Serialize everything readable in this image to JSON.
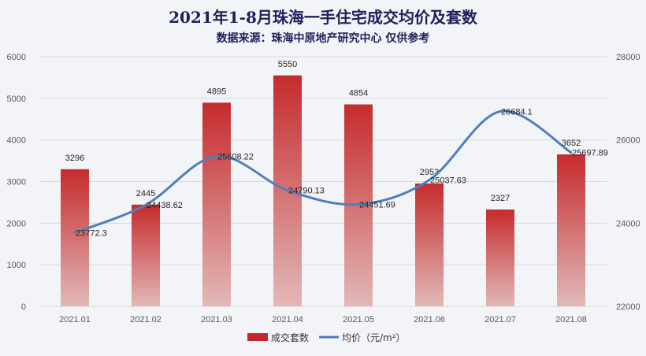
{
  "chart_data": {
    "type": "bar",
    "title": "2021年1-8月珠海一手住宅成交均价及套数",
    "subtitle": "数据来源：珠海中原地产研究中心 仅供参考",
    "categories": [
      "2021.01",
      "2021.02",
      "2021.03",
      "2021.04",
      "2021.05",
      "2021.06",
      "2021.07",
      "2021.08"
    ],
    "series": [
      {
        "name": "成交套数",
        "type": "bar",
        "axis": "left",
        "color": "#c1282a",
        "values": [
          3296,
          2445,
          4895,
          5550,
          4854,
          2953,
          2327,
          3652
        ]
      },
      {
        "name": "均价（元/m²）",
        "type": "line",
        "axis": "right",
        "color": "#4f7fb9",
        "values": [
          23772.3,
          24438.62,
          25608.22,
          24790.13,
          24451.69,
          25037.63,
          26684.1,
          25697.89
        ],
        "labels": [
          "23772.3",
          "24438.62",
          "25608.22",
          "24790.13",
          "24451.69",
          "25037.63",
          "26684.1",
          "25697.89"
        ]
      }
    ],
    "y_left": {
      "min": 0,
      "max": 6000,
      "ticks": [
        0,
        1000,
        2000,
        3000,
        4000,
        5000,
        6000
      ]
    },
    "y_right": {
      "min": 22000,
      "max": 28000,
      "ticks": [
        22000,
        24000,
        26000,
        28000
      ]
    },
    "legend_position": "bottom",
    "grid": true
  }
}
